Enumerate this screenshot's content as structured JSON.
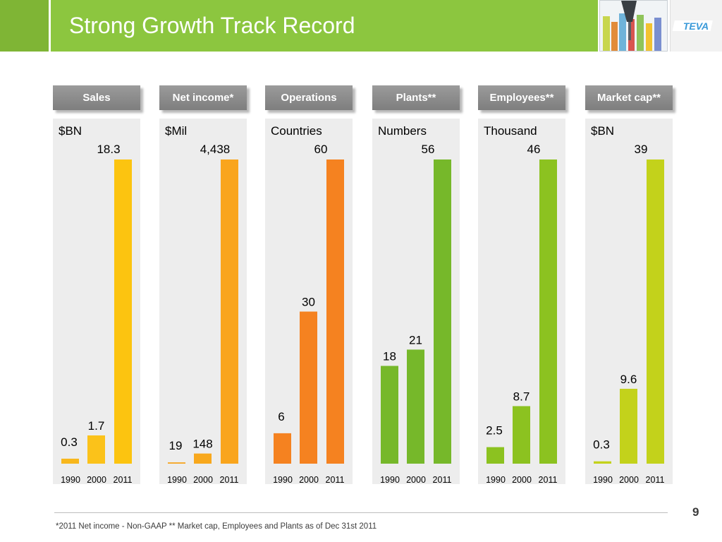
{
  "slide": {
    "title": "Strong Growth Track Record",
    "page_number": "9",
    "footnote": "*2011 Net income - Non-GAAP  ** Market cap, Employees and Plants as of Dec 31st 2011",
    "logo_text": "TEVA"
  },
  "colors": {
    "title_bar": "#8cc63f",
    "panel_bg": "#ededed",
    "header_btn": "#8a8a8a"
  },
  "chart_data": [
    {
      "type": "bar",
      "header": "Sales",
      "unit": "$BN",
      "categories": [
        "1990",
        "2000",
        "2011"
      ],
      "values": [
        0.3,
        1.7,
        18.3
      ],
      "value_labels": [
        "0.3",
        "1.7",
        "18.3"
      ],
      "colors": [
        "#f8b71c",
        "#fbc21a",
        "#fcc410"
      ]
    },
    {
      "type": "bar",
      "header": "Net income*",
      "unit": "$Mil",
      "categories": [
        "1990",
        "2000",
        "2011"
      ],
      "values": [
        19,
        148,
        4438
      ],
      "value_labels": [
        "19",
        "148",
        "4,438"
      ],
      "colors": [
        "#f6a623",
        "#f8a81d",
        "#f9a51d"
      ]
    },
    {
      "type": "bar",
      "header": "Operations",
      "unit": "Countries",
      "categories": [
        "1990",
        "2000",
        "2011"
      ],
      "values": [
        6,
        30,
        60
      ],
      "value_labels": [
        "6",
        "30",
        "60"
      ],
      "colors": [
        "#f58220",
        "#f58220",
        "#f58220"
      ]
    },
    {
      "type": "bar",
      "header": "Plants**",
      "unit": "Numbers",
      "categories": [
        "1990",
        "2000",
        "2011"
      ],
      "values": [
        18,
        21,
        56
      ],
      "value_labels": [
        "18",
        "21",
        "56"
      ],
      "colors": [
        "#76b82a",
        "#76b82a",
        "#76b82a"
      ]
    },
    {
      "type": "bar",
      "header": "Employees**",
      "unit": "Thousand",
      "categories": [
        "1990",
        "2000",
        "2011"
      ],
      "values": [
        2.5,
        8.7,
        46
      ],
      "value_labels": [
        "2.5",
        "8.7",
        "46"
      ],
      "colors": [
        "#8cc220",
        "#8cc220",
        "#8cc220"
      ]
    },
    {
      "type": "bar",
      "header": "Market cap**",
      "unit": "$BN",
      "categories": [
        "1990",
        "2000",
        "2011"
      ],
      "values": [
        0.3,
        9.6,
        39
      ],
      "value_labels": [
        "0.3",
        "9.6",
        "39"
      ],
      "colors": [
        "#c3d21b",
        "#c3d21b",
        "#c3d21b"
      ]
    }
  ]
}
